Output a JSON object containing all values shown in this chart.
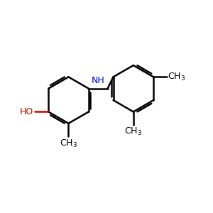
{
  "background_color": "#ffffff",
  "bond_color": "#000000",
  "oh_color": "#cc0000",
  "nh_color": "#0000cc",
  "line_width": 1.8,
  "font_size": 9,
  "fig_size": [
    3.0,
    3.0
  ],
  "dpi": 100
}
